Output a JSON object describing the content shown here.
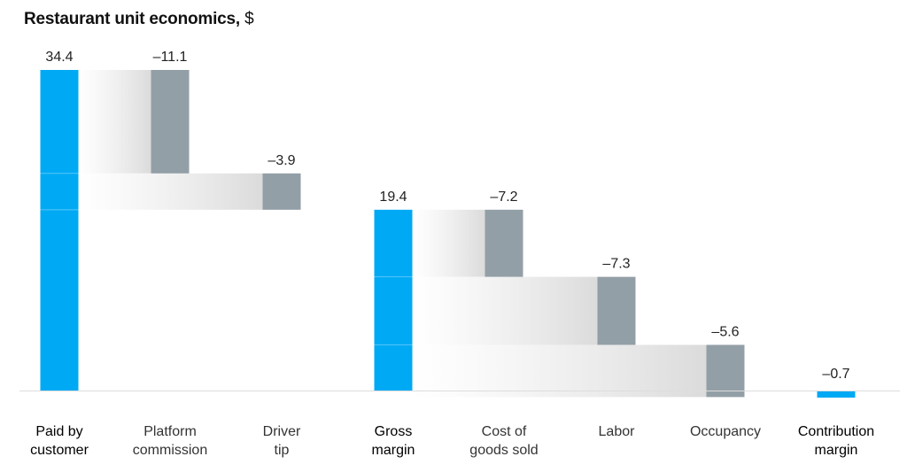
{
  "chart_data": {
    "type": "waterfall",
    "title": "Restaurant unit economics,",
    "unit": "$",
    "categories": [
      {
        "line1": "Paid by",
        "line2": "customer",
        "value": 34.4,
        "label": "34.4",
        "kind": "total",
        "emphasis": true
      },
      {
        "line1": "Platform",
        "line2": "commission",
        "value": -11.1,
        "label": "–11.1",
        "kind": "delta",
        "emphasis": false
      },
      {
        "line1": "Driver",
        "line2": "tip",
        "value": -3.9,
        "label": "–3.9",
        "kind": "delta",
        "emphasis": false
      },
      {
        "line1": "Gross",
        "line2": "margin",
        "value": 19.4,
        "label": "19.4",
        "kind": "total",
        "emphasis": true
      },
      {
        "line1": "Cost of",
        "line2": "goods sold",
        "value": -7.2,
        "label": "–7.2",
        "kind": "delta",
        "emphasis": false
      },
      {
        "line1": "Labor",
        "line2": "",
        "value": -7.3,
        "label": "–7.3",
        "kind": "delta",
        "emphasis": false
      },
      {
        "line1": "Occupancy",
        "line2": "",
        "value": -5.6,
        "label": "–5.6",
        "kind": "delta",
        "emphasis": false
      },
      {
        "line1": "Contribution",
        "line2": "margin",
        "value": -0.7,
        "label": "–0.7",
        "kind": "total",
        "emphasis": true
      }
    ],
    "ylim": [
      -0.7,
      34.4
    ],
    "colors": {
      "total": "#00A9F4",
      "delta": "#939FA6",
      "connector": "#E6E6E6",
      "axis": "#DDDDDD",
      "label": "#222222"
    }
  }
}
